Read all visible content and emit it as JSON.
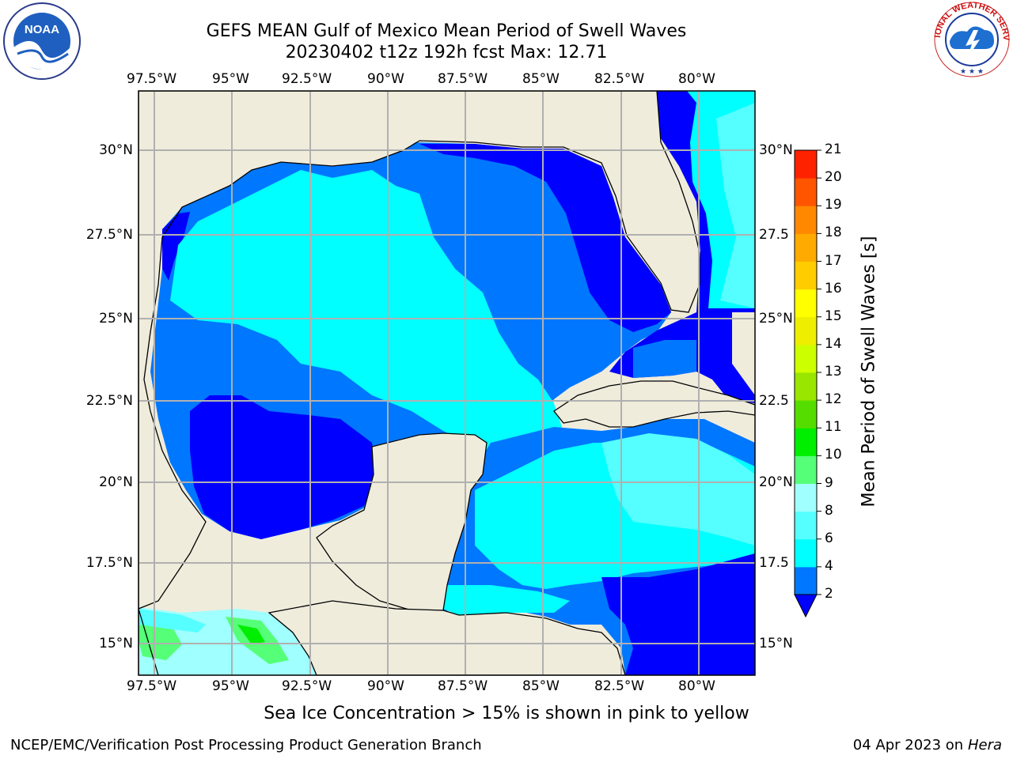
{
  "title": {
    "line1": "GEFS MEAN Gulf of Mexico Mean Period of Swell Waves",
    "line2": "20230402 t12z 192h fcst   Max: 12.71"
  },
  "axes": {
    "lon_labels": [
      "97.5°W",
      "95°W",
      "92.5°W",
      "90°W",
      "87.5°W",
      "85°W",
      "82.5°W",
      "80°W"
    ],
    "lat_labels": [
      "30°N",
      "27.5°N",
      "25°N",
      "22.5°N",
      "20°N",
      "17.5°N",
      "15°N"
    ],
    "lat_labels_right": [
      "30°N",
      "27.5",
      "25°N",
      "22.5",
      "20°N",
      "17.5",
      "15°N"
    ]
  },
  "colorbar": {
    "label": "Mean Period of Swell Waves [s]",
    "ticks": [
      "2",
      "4",
      "6",
      "8",
      "9",
      "10",
      "11",
      "12",
      "13",
      "14",
      "15",
      "16",
      "17",
      "18",
      "19",
      "20",
      "21"
    ],
    "colors": [
      "#0000ff",
      "#0077ff",
      "#00ffff",
      "#55ffff",
      "#a0ffff",
      "#55ff77",
      "#00ee00",
      "#55dd00",
      "#99e600",
      "#ccff00",
      "#eeee00",
      "#ffff00",
      "#ffcc00",
      "#ffaa00",
      "#ff8800",
      "#ff5500",
      "#ff2200",
      "#ff0000"
    ]
  },
  "footnote": "Sea Ice Concentration > 15% is shown in pink to yellow",
  "credits": {
    "left": "NCEP/EMC/Verification Post Processing Product Generation Branch",
    "right_date": "04 Apr 2023 on ",
    "right_host": "Hera"
  },
  "logos": {
    "noaa": "NOAA",
    "nws": "NATIONAL WEATHER SERVICE"
  }
}
